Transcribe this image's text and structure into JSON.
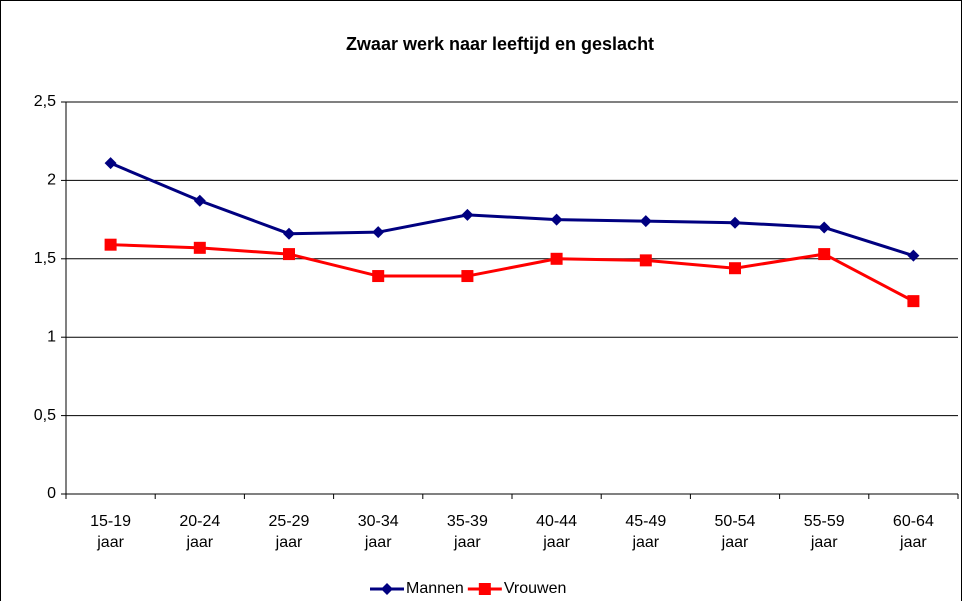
{
  "chart_data": {
    "type": "line",
    "title": "Zwaar werk naar leeftijd en geslacht",
    "categories": [
      "15-19 jaar",
      "20-24 jaar",
      "25-29 jaar",
      "30-34 jaar",
      "35-39 jaar",
      "40-44 jaar",
      "45-49 jaar",
      "50-54 jaar",
      "55-59 jaar",
      "60-64 jaar"
    ],
    "series": [
      {
        "name": "Mannen",
        "color": "#000080",
        "marker": "diamond",
        "values": [
          2.11,
          1.87,
          1.66,
          1.67,
          1.78,
          1.75,
          1.74,
          1.73,
          1.7,
          1.52
        ]
      },
      {
        "name": "Vrouwen",
        "color": "#ff0000",
        "marker": "square",
        "values": [
          1.59,
          1.57,
          1.53,
          1.39,
          1.39,
          1.5,
          1.49,
          1.44,
          1.53,
          1.23
        ]
      }
    ],
    "ylim": [
      0,
      2.5
    ],
    "yticks": [
      0,
      {
        "value": 0.5,
        "label": "0,5"
      },
      1,
      {
        "value": 1.5,
        "label": "1,5"
      },
      2,
      {
        "value": 2.5,
        "label": "2,5"
      }
    ],
    "grid": true,
    "legend": "bottom"
  }
}
